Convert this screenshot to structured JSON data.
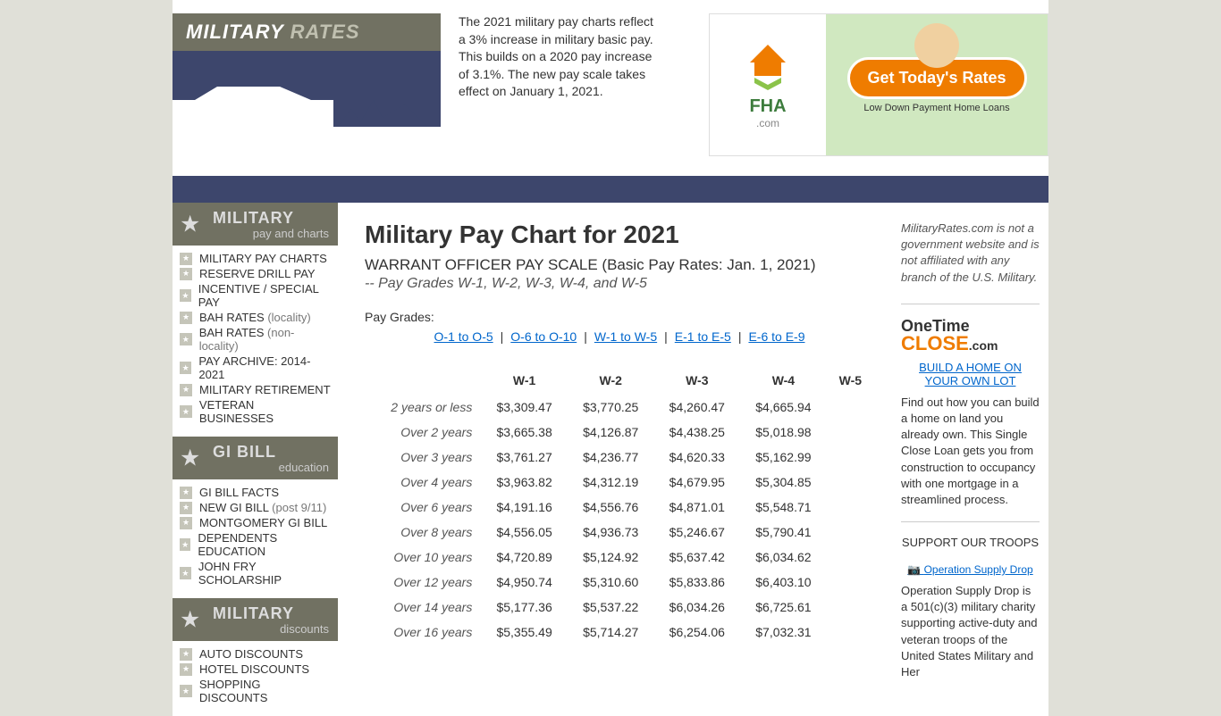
{
  "header": {
    "logo_main": "MILITARY",
    "logo_sub": "RATES",
    "intro": "The 2021 military pay charts reflect a 3% increase in military basic pay. This builds on a 2020 pay increase of 3.1%. The new pay scale takes effect on January 1, 2021."
  },
  "ad": {
    "fha_text": "FHA",
    "fha_com": ".com",
    "rates_btn": "Get Today's Rates",
    "rates_sub": "Low Down Payment Home Loans"
  },
  "nav": {
    "sections": [
      {
        "title1": "MILITARY",
        "title2": "pay and charts",
        "items": [
          {
            "label": "MILITARY PAY CHARTS",
            "note": ""
          },
          {
            "label": "RESERVE DRILL PAY",
            "note": ""
          },
          {
            "label": "INCENTIVE / SPECIAL PAY",
            "note": ""
          },
          {
            "label": "BAH RATES",
            "note": "(locality)"
          },
          {
            "label": "BAH RATES",
            "note": "(non-locality)"
          },
          {
            "label": "PAY ARCHIVE: 2014-2021",
            "note": ""
          },
          {
            "label": "MILITARY RETIREMENT",
            "note": ""
          },
          {
            "label": "VETERAN BUSINESSES",
            "note": ""
          }
        ]
      },
      {
        "title1": "GI BILL",
        "title2": "education",
        "items": [
          {
            "label": "GI BILL FACTS",
            "note": ""
          },
          {
            "label": "NEW GI BILL",
            "note": "(post 9/11)"
          },
          {
            "label": "MONTGOMERY GI BILL",
            "note": ""
          },
          {
            "label": "DEPENDENTS EDUCATION",
            "note": ""
          },
          {
            "label": "JOHN FRY SCHOLARSHIP",
            "note": ""
          }
        ]
      },
      {
        "title1": "MILITARY",
        "title2": "discounts",
        "items": [
          {
            "label": "AUTO DISCOUNTS",
            "note": ""
          },
          {
            "label": "HOTEL DISCOUNTS",
            "note": ""
          },
          {
            "label": "SHOPPING DISCOUNTS",
            "note": ""
          }
        ]
      }
    ]
  },
  "main": {
    "h1": "Military Pay Chart for 2021",
    "sub": "WARRANT OFFICER PAY SCALE (Basic Pay Rates: Jan. 1, 2021)",
    "sub2": "-- Pay Grades W-1, W-2, W-3, W-4, and W-5",
    "pg_label": "Pay Grades:",
    "links": [
      "O-1 to O-5",
      "O-6 to O-10",
      "W-1 to W-5",
      "E-1 to E-5",
      "E-6 to E-9"
    ]
  },
  "table": {
    "cols": [
      "W-1",
      "W-2",
      "W-3",
      "W-4",
      "W-5"
    ],
    "rows": [
      {
        "label": "2 years or less",
        "vals": [
          "$3,309.47",
          "$3,770.25",
          "$4,260.47",
          "$4,665.94",
          ""
        ]
      },
      {
        "label": "Over 2 years",
        "vals": [
          "$3,665.38",
          "$4,126.87",
          "$4,438.25",
          "$5,018.98",
          ""
        ]
      },
      {
        "label": "Over 3 years",
        "vals": [
          "$3,761.27",
          "$4,236.77",
          "$4,620.33",
          "$5,162.99",
          ""
        ]
      },
      {
        "label": "Over 4 years",
        "vals": [
          "$3,963.82",
          "$4,312.19",
          "$4,679.95",
          "$5,304.85",
          ""
        ]
      },
      {
        "label": "Over 6 years",
        "vals": [
          "$4,191.16",
          "$4,556.76",
          "$4,871.01",
          "$5,548.71",
          ""
        ]
      },
      {
        "label": "Over 8 years",
        "vals": [
          "$4,556.05",
          "$4,936.73",
          "$5,246.67",
          "$5,790.41",
          ""
        ]
      },
      {
        "label": "Over 10 years",
        "vals": [
          "$4,720.89",
          "$5,124.92",
          "$5,637.42",
          "$6,034.62",
          ""
        ]
      },
      {
        "label": "Over 12 years",
        "vals": [
          "$4,950.74",
          "$5,310.60",
          "$5,833.86",
          "$6,403.10",
          ""
        ]
      },
      {
        "label": "Over 14 years",
        "vals": [
          "$5,177.36",
          "$5,537.22",
          "$6,034.26",
          "$6,725.61",
          ""
        ]
      },
      {
        "label": "Over 16 years",
        "vals": [
          "$5,355.49",
          "$5,714.27",
          "$6,254.06",
          "$7,032.31",
          ""
        ]
      }
    ]
  },
  "right": {
    "disclaimer": "MilitaryRates.com is not a government website and is not affiliated with any branch of the U.S. Military.",
    "otc1": "OneTime",
    "otc2": "CLOSE",
    "otc3": ".com",
    "build_link": "BUILD A HOME ON YOUR OWN LOT",
    "build_text": "Find out how you can build a home on land you already own. This Single Close Loan gets you from construction to occupancy with one mortgage in a streamlined process.",
    "support": "SUPPORT OUR TROOPS",
    "osd_link": "Operation Supply Drop",
    "osd_text": "Operation Supply Drop is a 501(c)(3) military charity supporting active-duty and veteran troops of the United States Military and Her"
  }
}
